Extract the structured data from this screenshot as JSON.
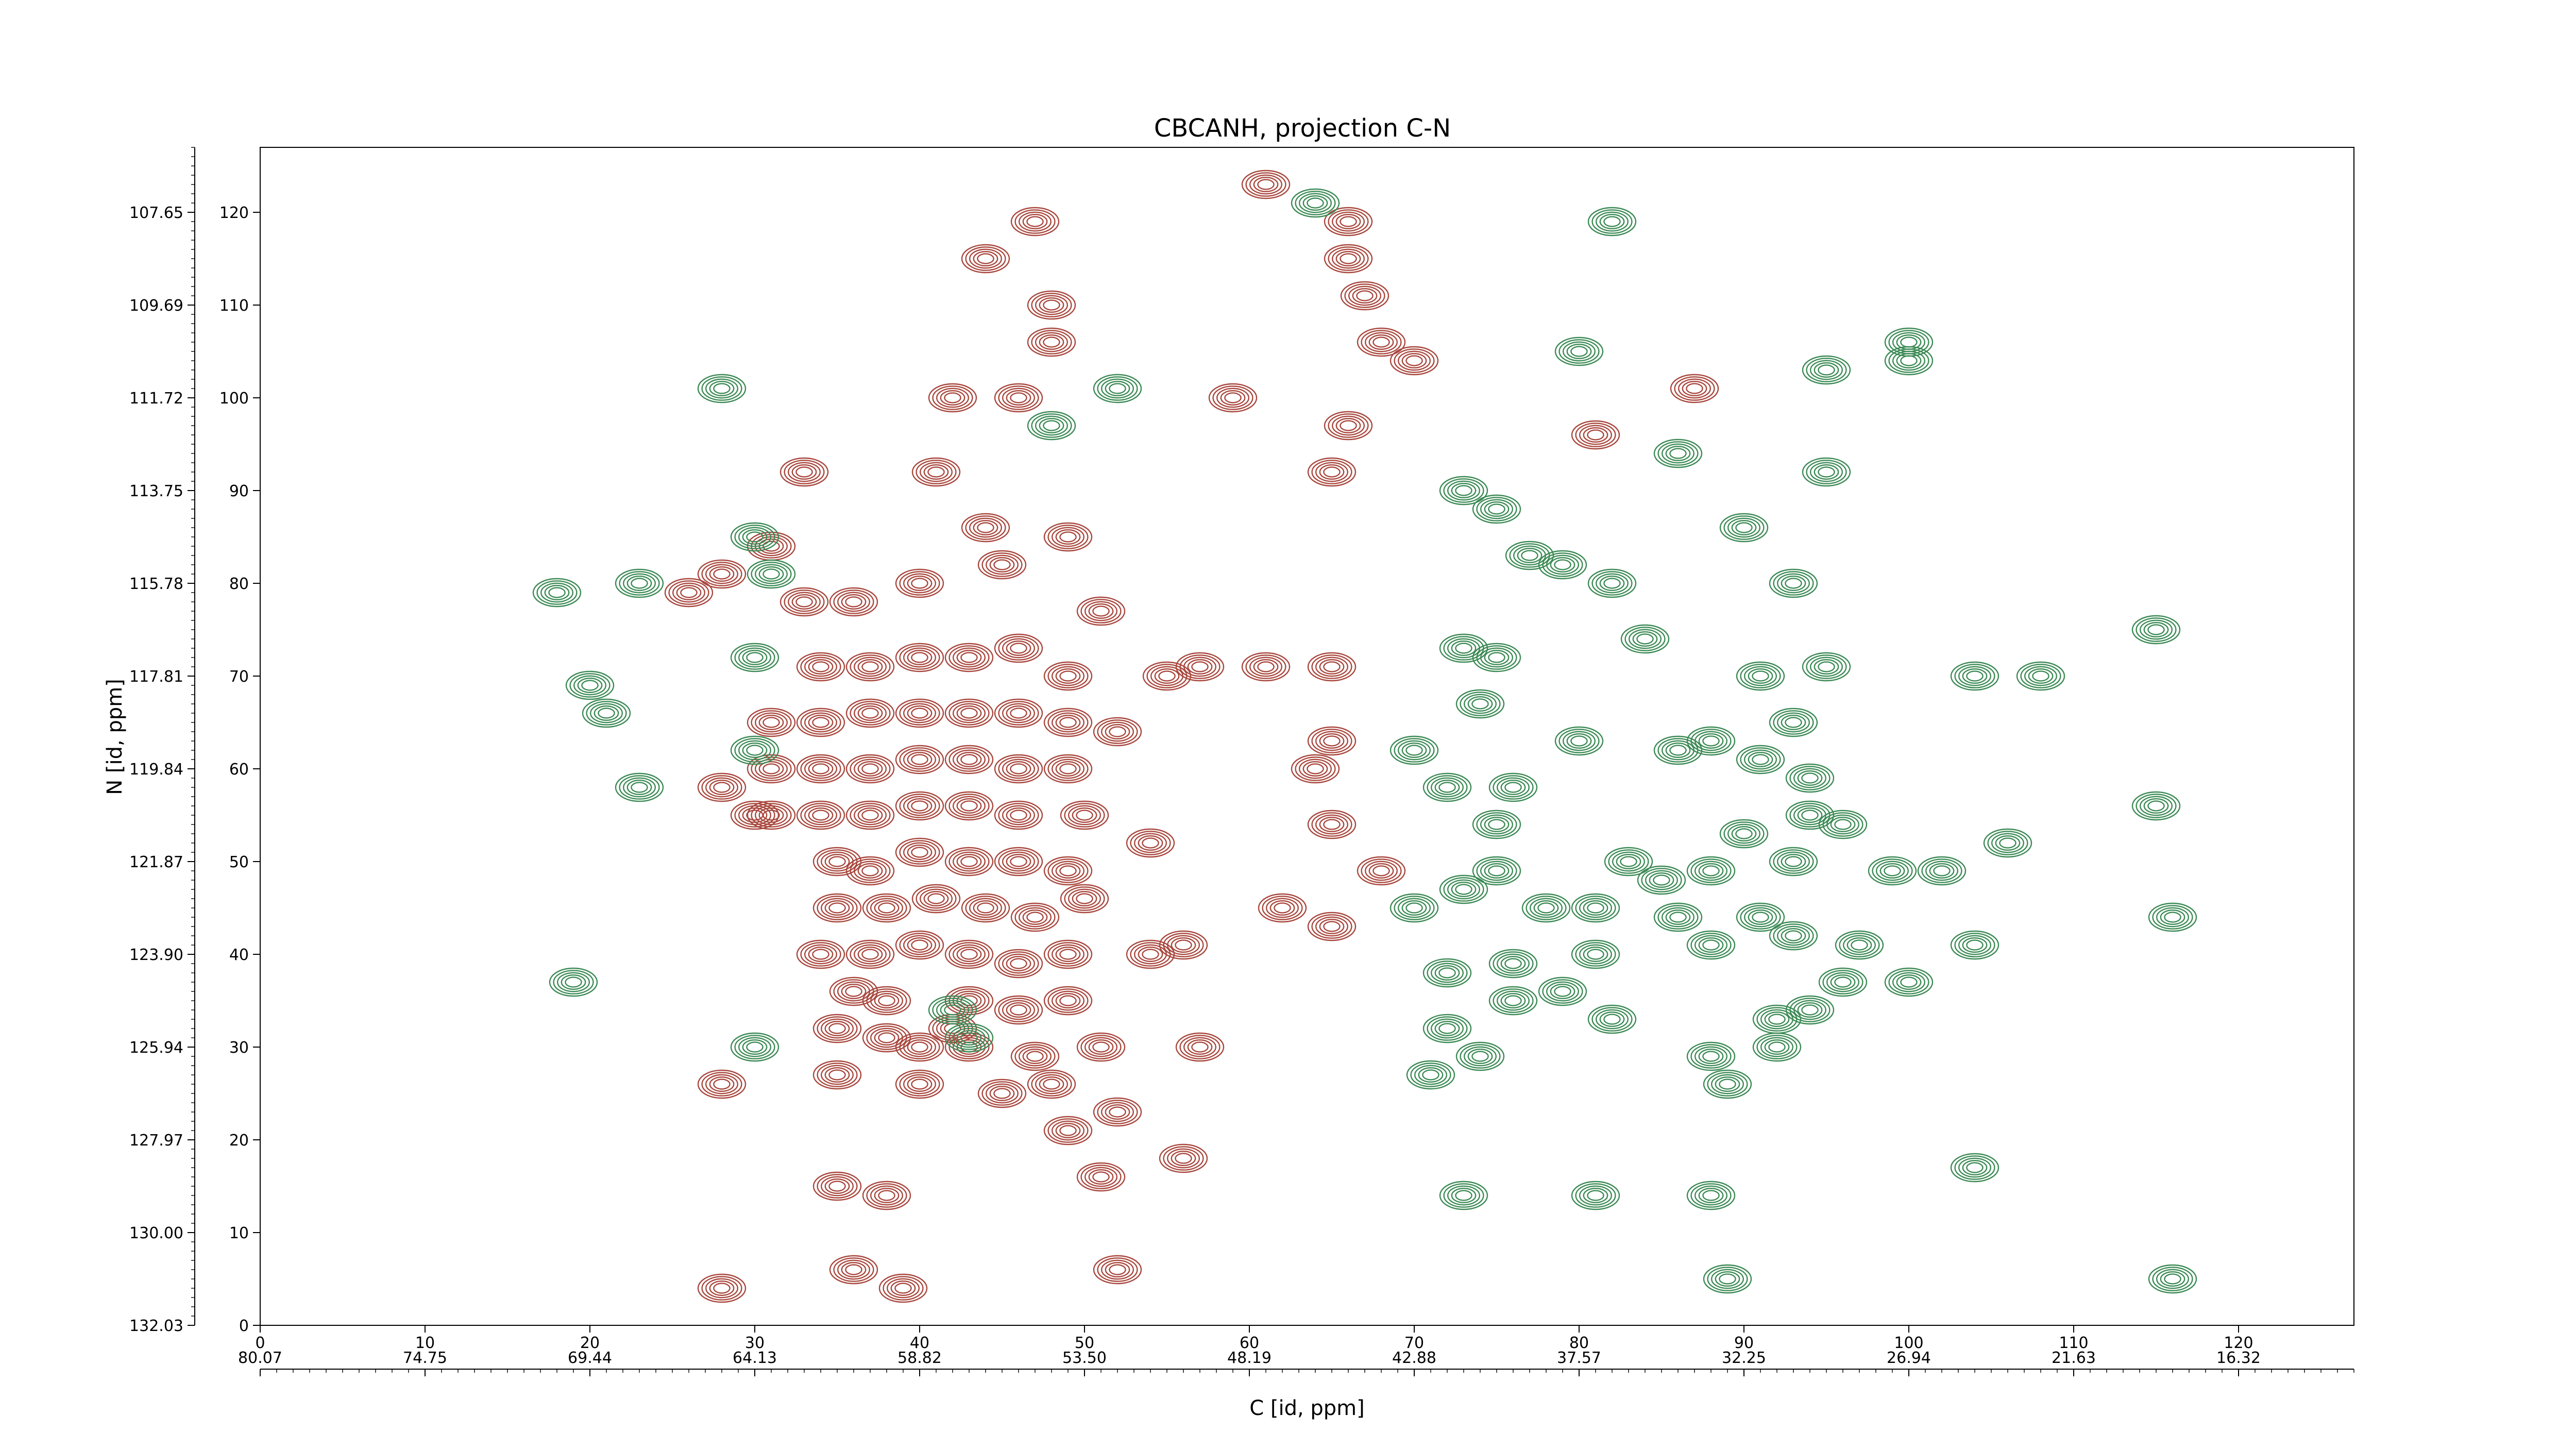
{
  "chart_data": {
    "type": "contour",
    "title": "CBCANH, projection C-N",
    "xlabel": "C [id, ppm]",
    "ylabel": "N [id, ppm]",
    "grid": false,
    "legend": "none",
    "colors": {
      "positive": "#a8473d",
      "negative": "#3c8a55"
    },
    "x_index_axis": {
      "position": "bottom",
      "range": [
        0,
        127
      ],
      "ticks": [
        0,
        10,
        20,
        30,
        40,
        50,
        60,
        70,
        80,
        90,
        100,
        110,
        120
      ],
      "tick_labels": [
        "0",
        "10",
        "20",
        "30",
        "40",
        "50",
        "60",
        "70",
        "80",
        "90",
        "100",
        "110",
        "120"
      ]
    },
    "x_ppm_axis": {
      "position": "bottom-secondary",
      "range": [
        80.07,
        12.57
      ],
      "tick_labels": [
        "80.07",
        "74.75",
        "69.44",
        "64.13",
        "58.82",
        "53.50",
        "48.19",
        "42.88",
        "37.57",
        "32.25",
        "26.94",
        "21.63",
        "16.32"
      ]
    },
    "y_index_axis": {
      "position": "left-inner",
      "range": [
        0,
        127
      ],
      "ticks": [
        0,
        10,
        20,
        30,
        40,
        50,
        60,
        70,
        80,
        90,
        100,
        110,
        120
      ],
      "tick_labels": [
        "0",
        "10",
        "20",
        "30",
        "40",
        "50",
        "60",
        "70",
        "80",
        "90",
        "100",
        "110",
        "120"
      ]
    },
    "y_ppm_axis": {
      "position": "left-outer",
      "range": [
        132.03,
        106.2
      ],
      "tick_labels": [
        "132.03",
        "130.00",
        "127.97",
        "125.94",
        "123.90",
        "121.87",
        "119.84",
        "117.81",
        "115.78",
        "113.75",
        "111.72",
        "109.69",
        "107.65"
      ]
    },
    "peaks_positive": [
      [
        61,
        123
      ],
      [
        66,
        119
      ],
      [
        66,
        115
      ],
      [
        67,
        111
      ],
      [
        68,
        106
      ],
      [
        70,
        104
      ],
      [
        65,
        92
      ],
      [
        42,
        100
      ],
      [
        46,
        100
      ],
      [
        41,
        92
      ],
      [
        44,
        86
      ],
      [
        49,
        85
      ],
      [
        45,
        82
      ],
      [
        40,
        80
      ],
      [
        36,
        78
      ],
      [
        33,
        78
      ],
      [
        47,
        119
      ],
      [
        44,
        115
      ],
      [
        48,
        110
      ],
      [
        48,
        106
      ],
      [
        51,
        77
      ],
      [
        65,
        71
      ],
      [
        55,
        70
      ],
      [
        34,
        71
      ],
      [
        37,
        71
      ],
      [
        40,
        72
      ],
      [
        43,
        72
      ],
      [
        46,
        73
      ],
      [
        49,
        70
      ],
      [
        31,
        65
      ],
      [
        34,
        65
      ],
      [
        37,
        66
      ],
      [
        40,
        66
      ],
      [
        43,
        66
      ],
      [
        46,
        66
      ],
      [
        49,
        65
      ],
      [
        31,
        60
      ],
      [
        34,
        60
      ],
      [
        37,
        60
      ],
      [
        40,
        61
      ],
      [
        43,
        61
      ],
      [
        46,
        60
      ],
      [
        49,
        60
      ],
      [
        31,
        55
      ],
      [
        34,
        55
      ],
      [
        37,
        55
      ],
      [
        40,
        56
      ],
      [
        43,
        56
      ],
      [
        46,
        55
      ],
      [
        50,
        55
      ],
      [
        54,
        52
      ],
      [
        35,
        50
      ],
      [
        37,
        49
      ],
      [
        40,
        51
      ],
      [
        43,
        50
      ],
      [
        46,
        50
      ],
      [
        49,
        49
      ],
      [
        35,
        45
      ],
      [
        38,
        45
      ],
      [
        41,
        46
      ],
      [
        44,
        45
      ],
      [
        47,
        44
      ],
      [
        50,
        46
      ],
      [
        34,
        40
      ],
      [
        37,
        40
      ],
      [
        40,
        41
      ],
      [
        43,
        40
      ],
      [
        46,
        39
      ],
      [
        49,
        40
      ],
      [
        36,
        36
      ],
      [
        38,
        35
      ],
      [
        43,
        35
      ],
      [
        46,
        34
      ],
      [
        49,
        35
      ],
      [
        35,
        32
      ],
      [
        38,
        31
      ],
      [
        42,
        32
      ],
      [
        40,
        30
      ],
      [
        43,
        30
      ],
      [
        47,
        29
      ],
      [
        51,
        30
      ],
      [
        35,
        27
      ],
      [
        40,
        26
      ],
      [
        45,
        25
      ],
      [
        48,
        26
      ],
      [
        52,
        23
      ],
      [
        49,
        21
      ],
      [
        56,
        18
      ],
      [
        51,
        16
      ],
      [
        35,
        15
      ],
      [
        38,
        14
      ],
      [
        36,
        6
      ],
      [
        39,
        4
      ],
      [
        52,
        6
      ],
      [
        28,
        4
      ],
      [
        56,
        41
      ],
      [
        64,
        60
      ],
      [
        65,
        54
      ],
      [
        68,
        49
      ],
      [
        65,
        43
      ],
      [
        62,
        45
      ],
      [
        57,
        71
      ],
      [
        61,
        71
      ],
      [
        52,
        64
      ],
      [
        28,
        58
      ],
      [
        30,
        55
      ],
      [
        28,
        26
      ],
      [
        28,
        81
      ],
      [
        26,
        79
      ],
      [
        87,
        101
      ],
      [
        81,
        96
      ],
      [
        66,
        97
      ],
      [
        57,
        30
      ],
      [
        54,
        40
      ],
      [
        65,
        63
      ],
      [
        33,
        92
      ],
      [
        31,
        84
      ],
      [
        59,
        100
      ]
    ],
    "peaks_negative": [
      [
        64,
        121
      ],
      [
        28,
        101
      ],
      [
        30,
        85
      ],
      [
        31,
        81
      ],
      [
        18,
        79
      ],
      [
        23,
        80
      ],
      [
        30,
        72
      ],
      [
        20,
        69
      ],
      [
        21,
        66
      ],
      [
        30,
        62
      ],
      [
        23,
        58
      ],
      [
        19,
        37
      ],
      [
        30,
        30
      ],
      [
        42,
        34
      ],
      [
        43,
        31
      ],
      [
        73,
        73
      ],
      [
        75,
        72
      ],
      [
        74,
        67
      ],
      [
        70,
        62
      ],
      [
        72,
        58
      ],
      [
        76,
        58
      ],
      [
        75,
        54
      ],
      [
        80,
        63
      ],
      [
        86,
        62
      ],
      [
        88,
        63
      ],
      [
        91,
        61
      ],
      [
        93,
        65
      ],
      [
        84,
        74
      ],
      [
        91,
        70
      ],
      [
        95,
        71
      ],
      [
        94,
        59
      ],
      [
        94,
        55
      ],
      [
        90,
        53
      ],
      [
        96,
        54
      ],
      [
        93,
        50
      ],
      [
        88,
        49
      ],
      [
        83,
        50
      ],
      [
        85,
        48
      ],
      [
        75,
        49
      ],
      [
        73,
        47
      ],
      [
        70,
        45
      ],
      [
        78,
        45
      ],
      [
        81,
        45
      ],
      [
        86,
        44
      ],
      [
        88,
        41
      ],
      [
        91,
        44
      ],
      [
        93,
        42
      ],
      [
        97,
        41
      ],
      [
        100,
        37
      ],
      [
        96,
        37
      ],
      [
        92,
        33
      ],
      [
        94,
        34
      ],
      [
        92,
        30
      ],
      [
        88,
        29
      ],
      [
        89,
        26
      ],
      [
        82,
        33
      ],
      [
        71,
        27
      ],
      [
        74,
        29
      ],
      [
        72,
        32
      ],
      [
        76,
        35
      ],
      [
        72,
        38
      ],
      [
        76,
        39
      ],
      [
        79,
        36
      ],
      [
        81,
        40
      ],
      [
        106,
        52
      ],
      [
        102,
        49
      ],
      [
        99,
        49
      ],
      [
        115,
        56
      ],
      [
        116,
        44
      ],
      [
        104,
        41
      ],
      [
        104,
        17
      ],
      [
        116,
        5
      ],
      [
        89,
        5
      ],
      [
        73,
        14
      ],
      [
        81,
        14
      ],
      [
        88,
        14
      ],
      [
        100,
        106
      ],
      [
        100,
        104
      ],
      [
        82,
        119
      ],
      [
        95,
        92
      ],
      [
        73,
        90
      ],
      [
        75,
        88
      ],
      [
        90,
        86
      ],
      [
        77,
        83
      ],
      [
        79,
        82
      ],
      [
        82,
        80
      ],
      [
        93,
        80
      ],
      [
        115,
        75
      ],
      [
        104,
        70
      ],
      [
        108,
        70
      ],
      [
        86,
        94
      ],
      [
        95,
        103
      ],
      [
        52,
        101
      ],
      [
        48,
        97
      ],
      [
        80,
        105
      ]
    ]
  }
}
